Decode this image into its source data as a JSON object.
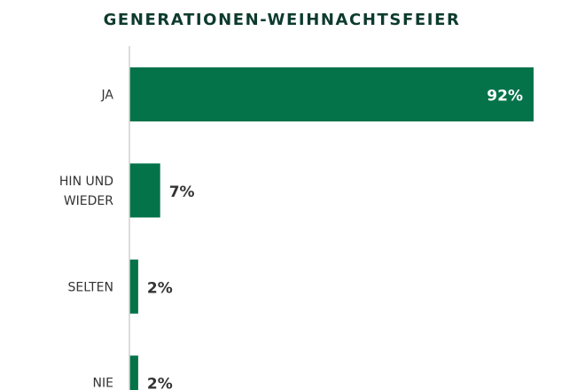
{
  "chart_data": {
    "type": "bar",
    "orientation": "horizontal",
    "title": "GENERATIONEN-WEIHNACHTSFEIER",
    "categories": [
      [
        "JA"
      ],
      [
        "HIN UND",
        "WIEDER"
      ],
      [
        "SELTEN"
      ],
      [
        "NIE"
      ]
    ],
    "values": [
      92,
      7,
      2,
      2
    ],
    "value_labels": [
      "92%",
      "7%",
      "2%",
      "2%"
    ],
    "xlim": [
      0,
      92
    ],
    "grid": false,
    "bar_color": "#04734a",
    "axis_color": "#d0d0d0",
    "label_color": "#333333",
    "title_color": "#0d3b2e"
  }
}
